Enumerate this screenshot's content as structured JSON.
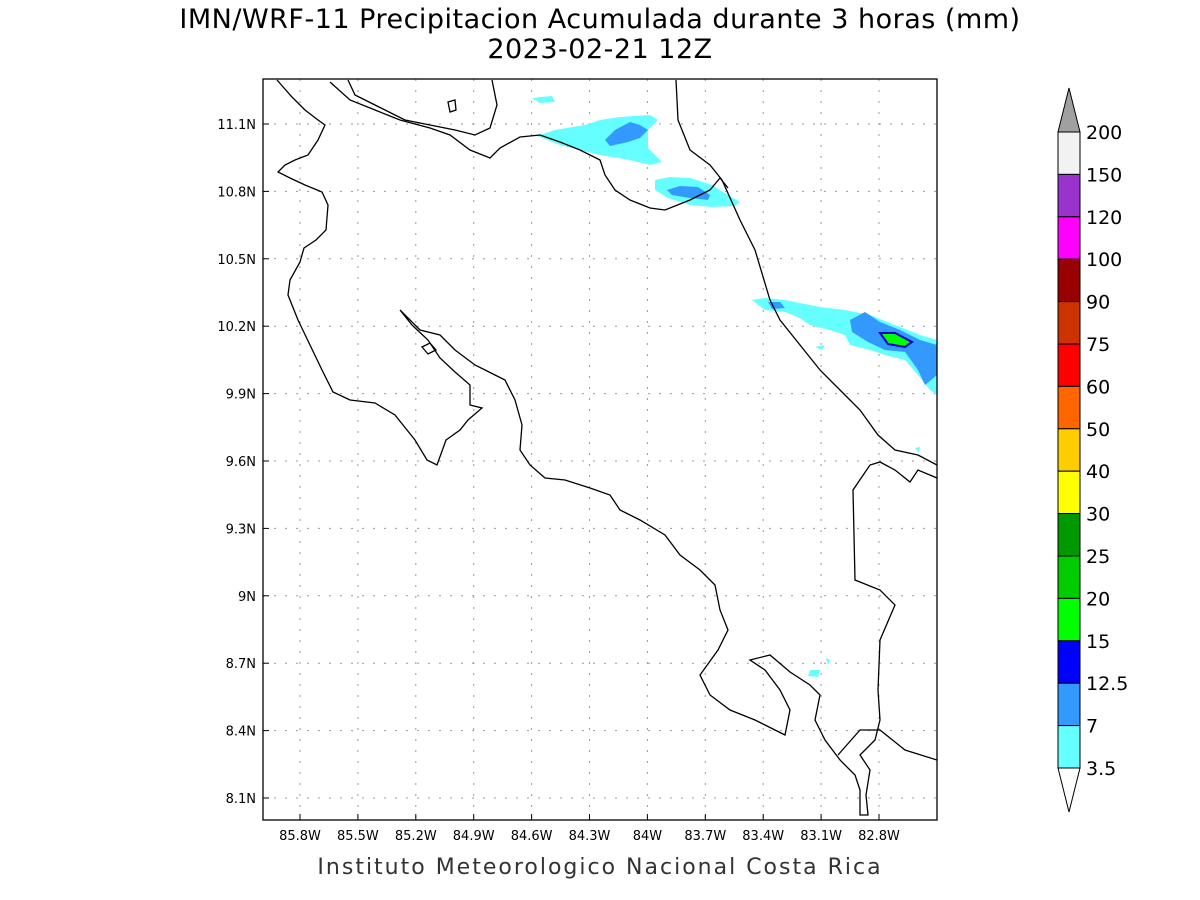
{
  "title": "IMN/WRF-11 Precipitacion Acumulada durante 3 horas (mm)",
  "subtitle": "2023-02-21 12Z",
  "credit": "Instituto Meteorologico Nacional Costa Rica",
  "map": {
    "lon_ticks": [
      "85.8W",
      "85.5W",
      "85.2W",
      "84.9W",
      "84.6W",
      "84.3W",
      "84W",
      "83.7W",
      "83.4W",
      "83.1W",
      "82.8W"
    ],
    "lat_ticks": [
      "11.1N",
      "10.8N",
      "10.5N",
      "10.2N",
      "9.9N",
      "9.6N",
      "9.3N",
      "9N",
      "8.7N",
      "8.4N",
      "8.1N"
    ]
  },
  "colorbar": {
    "labels": [
      "3.5",
      "7",
      "12.5",
      "15",
      "20",
      "25",
      "30",
      "40",
      "50",
      "60",
      "75",
      "90",
      "100",
      "120",
      "150",
      "200"
    ],
    "colors": [
      "#66ffff",
      "#3399ff",
      "#0000ff",
      "#00ff00",
      "#00cc00",
      "#009900",
      "#ffff00",
      "#ffcc00",
      "#ff6600",
      "#ff0000",
      "#cc3300",
      "#990000",
      "#ff00ff",
      "#9933cc",
      "#f2f2f2"
    ],
    "over_color": "#a0a0a0",
    "under_color": "#ffffff"
  }
}
